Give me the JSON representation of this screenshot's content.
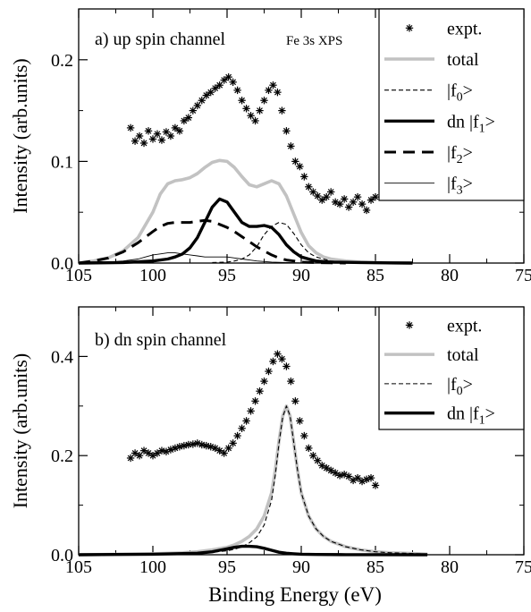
{
  "chart_data": [
    {
      "type": "line",
      "panel_label": "a) up spin channel",
      "annotation": "Fe 3s XPS",
      "ylabel": "Intensity (arb.units)",
      "xlabel": "",
      "xlim": [
        105,
        75
      ],
      "ylim": [
        0,
        0.25
      ],
      "x_ticks": [
        105,
        100,
        95,
        90,
        85,
        80,
        75
      ],
      "y_ticks": [
        0.0,
        0.1,
        0.2
      ],
      "x_tick_labels": [
        "105",
        "100",
        "95",
        "90",
        "85",
        "80",
        "75"
      ],
      "y_tick_labels": [
        "0.0",
        "0.1",
        "0.2"
      ],
      "legend_position": "top-right",
      "legend": [
        {
          "label": "expt.",
          "sub": "",
          "tail": "",
          "prefix": "",
          "style": "star"
        },
        {
          "label": "total",
          "sub": "",
          "tail": "",
          "prefix": "",
          "style": "gray-thick"
        },
        {
          "label": "|f",
          "sub": "0",
          "tail": ">",
          "prefix": "",
          "style": "thin-dash"
        },
        {
          "label": "dn |f",
          "sub": "1",
          "tail": ">",
          "prefix": "",
          "style": "thick-solid"
        },
        {
          "label": "|f",
          "sub": "2",
          "tail": ">",
          "prefix": "",
          "style": "thick-dash"
        },
        {
          "label": "|f",
          "sub": "3",
          "tail": ">",
          "prefix": "",
          "style": "thin-solid"
        }
      ],
      "series": [
        {
          "name": "expt.",
          "kind": "scatter",
          "style": "star",
          "x": [
            101.5,
            101.2,
            100.9,
            100.6,
            100.3,
            100.0,
            99.7,
            99.4,
            99.1,
            98.8,
            98.5,
            98.2,
            97.9,
            97.6,
            97.3,
            97.0,
            96.7,
            96.4,
            96.1,
            95.8,
            95.5,
            95.2,
            94.9,
            94.6,
            94.3,
            94.0,
            93.7,
            93.4,
            93.1,
            92.8,
            92.5,
            92.2,
            91.9,
            91.6,
            91.3,
            91.0,
            90.7,
            90.4,
            90.1,
            89.8,
            89.5,
            89.2,
            88.9,
            88.6,
            88.3,
            88.0,
            87.7,
            87.4,
            87.1,
            86.8,
            86.5,
            86.2,
            85.9,
            85.6,
            85.3,
            85.0
          ],
          "y": [
            0.133,
            0.12,
            0.125,
            0.118,
            0.13,
            0.122,
            0.127,
            0.121,
            0.129,
            0.125,
            0.133,
            0.13,
            0.14,
            0.143,
            0.15,
            0.155,
            0.16,
            0.165,
            0.168,
            0.172,
            0.175,
            0.18,
            0.183,
            0.178,
            0.17,
            0.16,
            0.152,
            0.145,
            0.14,
            0.15,
            0.16,
            0.17,
            0.175,
            0.168,
            0.15,
            0.13,
            0.115,
            0.1,
            0.095,
            0.085,
            0.075,
            0.07,
            0.066,
            0.062,
            0.065,
            0.07,
            0.06,
            0.058,
            0.063,
            0.055,
            0.06,
            0.065,
            0.058,
            0.052,
            0.062,
            0.065
          ]
        },
        {
          "name": "total",
          "kind": "line",
          "style": "gray-thick",
          "x": [
            105,
            104,
            103,
            102,
            101,
            100,
            99.5,
            99,
            98.5,
            98,
            97.5,
            97,
            96.5,
            96,
            95.5,
            95,
            94.5,
            94,
            93.5,
            93,
            92.5,
            92,
            91.5,
            91,
            90.5,
            90,
            89.5,
            89,
            88.5,
            88,
            87,
            86,
            85,
            84,
            83,
            82.5
          ],
          "y": [
            0.0,
            0.002,
            0.005,
            0.012,
            0.025,
            0.05,
            0.068,
            0.078,
            0.081,
            0.082,
            0.084,
            0.088,
            0.094,
            0.099,
            0.101,
            0.1,
            0.094,
            0.085,
            0.077,
            0.075,
            0.078,
            0.081,
            0.078,
            0.066,
            0.048,
            0.03,
            0.017,
            0.01,
            0.006,
            0.004,
            0.002,
            0.001,
            0.0005,
            0.0002,
            0.0,
            0.0
          ]
        },
        {
          "name": "|f0>",
          "kind": "line",
          "style": "thin-dash",
          "x": [
            96,
            95,
            94.5,
            94,
            93.5,
            93,
            92.5,
            92,
            91.5,
            91,
            90.5,
            90,
            89.5,
            89,
            88.5,
            88,
            87,
            86,
            85
          ],
          "y": [
            0.0005,
            0.001,
            0.002,
            0.004,
            0.008,
            0.016,
            0.028,
            0.036,
            0.04,
            0.038,
            0.029,
            0.018,
            0.01,
            0.006,
            0.004,
            0.002,
            0.001,
            0.0005,
            0.0
          ]
        },
        {
          "name": "dn |f1>",
          "kind": "line",
          "style": "thick-solid",
          "x": [
            105,
            102,
            100,
            99,
            98.5,
            98,
            97.5,
            97,
            96.5,
            96,
            95.5,
            95,
            94.5,
            94,
            93.5,
            93,
            92.5,
            92,
            91.5,
            91,
            90.5,
            90,
            89.5,
            89,
            88,
            86,
            84,
            82.5
          ],
          "y": [
            0.0,
            0.0005,
            0.002,
            0.004,
            0.006,
            0.009,
            0.015,
            0.025,
            0.04,
            0.055,
            0.063,
            0.06,
            0.05,
            0.04,
            0.036,
            0.036,
            0.037,
            0.035,
            0.028,
            0.018,
            0.011,
            0.006,
            0.004,
            0.002,
            0.001,
            0.0005,
            0.0002,
            0.0
          ]
        },
        {
          "name": "|f2>",
          "kind": "line",
          "style": "thick-dash",
          "x": [
            105,
            104,
            103,
            102,
            101,
            100,
            99.5,
            99,
            98.5,
            98,
            97.5,
            97,
            96.5,
            96,
            95.5,
            95,
            94.5,
            94,
            93.5,
            93,
            92.5,
            92,
            91.5,
            91,
            90.5,
            90,
            89.5,
            89,
            88,
            87
          ],
          "y": [
            0.0,
            0.002,
            0.005,
            0.011,
            0.02,
            0.031,
            0.036,
            0.039,
            0.04,
            0.04,
            0.04,
            0.041,
            0.042,
            0.041,
            0.038,
            0.035,
            0.031,
            0.026,
            0.021,
            0.016,
            0.012,
            0.008,
            0.005,
            0.003,
            0.002,
            0.001,
            0.0007,
            0.0004,
            0.0002,
            0.0
          ]
        },
        {
          "name": "|f3>",
          "kind": "line",
          "style": "thin-solid",
          "x": [
            105,
            103,
            102,
            101,
            100.5,
            100,
            99.5,
            99,
            98.5,
            98,
            97.5,
            97,
            96.5,
            96,
            95.5,
            95,
            94.5,
            94,
            93.5,
            93,
            92,
            91,
            90,
            88,
            86
          ],
          "y": [
            0.0,
            0.001,
            0.002,
            0.004,
            0.006,
            0.008,
            0.009,
            0.01,
            0.01,
            0.009,
            0.008,
            0.007,
            0.006,
            0.006,
            0.006,
            0.006,
            0.005,
            0.004,
            0.003,
            0.002,
            0.001,
            0.0005,
            0.0002,
            0.0001,
            0.0
          ]
        }
      ]
    },
    {
      "type": "line",
      "panel_label": "b) dn spin channel",
      "annotation": "",
      "ylabel": "Intensity (arb.units)",
      "xlabel": "Binding Energy (eV)",
      "xlim": [
        105,
        75
      ],
      "ylim": [
        0,
        0.5
      ],
      "x_ticks": [
        105,
        100,
        95,
        90,
        85,
        80,
        75
      ],
      "y_ticks": [
        0.0,
        0.2,
        0.4
      ],
      "x_tick_labels": [
        "105",
        "100",
        "95",
        "90",
        "85",
        "80",
        "75"
      ],
      "y_tick_labels": [
        "0.0",
        "0.2",
        "0.4"
      ],
      "legend_position": "top-right",
      "legend": [
        {
          "label": "expt.",
          "sub": "",
          "tail": "",
          "prefix": "",
          "style": "star"
        },
        {
          "label": "total",
          "sub": "",
          "tail": "",
          "prefix": "",
          "style": "gray-thick"
        },
        {
          "label": "|f",
          "sub": "0",
          "tail": ">",
          "prefix": "",
          "style": "thin-dash"
        },
        {
          "label": "dn |f",
          "sub": "1",
          "tail": ">",
          "prefix": "",
          "style": "thick-solid"
        }
      ],
      "series": [
        {
          "name": "expt.",
          "kind": "scatter",
          "style": "star",
          "x": [
            101.5,
            101.2,
            100.9,
            100.6,
            100.3,
            100.0,
            99.7,
            99.4,
            99.1,
            98.8,
            98.5,
            98.2,
            97.9,
            97.6,
            97.3,
            97.0,
            96.7,
            96.4,
            96.1,
            95.8,
            95.5,
            95.2,
            94.9,
            94.6,
            94.3,
            94.0,
            93.7,
            93.4,
            93.1,
            92.8,
            92.5,
            92.2,
            91.9,
            91.6,
            91.3,
            91.0,
            90.7,
            90.4,
            90.1,
            89.8,
            89.5,
            89.2,
            88.9,
            88.6,
            88.3,
            88.0,
            87.7,
            87.4,
            87.1,
            86.8,
            86.5,
            86.2,
            85.9,
            85.6,
            85.3,
            85.0
          ],
          "y": [
            0.195,
            0.205,
            0.2,
            0.21,
            0.205,
            0.2,
            0.205,
            0.21,
            0.208,
            0.212,
            0.215,
            0.218,
            0.22,
            0.222,
            0.223,
            0.225,
            0.222,
            0.22,
            0.218,
            0.215,
            0.21,
            0.205,
            0.215,
            0.225,
            0.24,
            0.255,
            0.27,
            0.29,
            0.31,
            0.33,
            0.35,
            0.37,
            0.39,
            0.405,
            0.395,
            0.38,
            0.35,
            0.31,
            0.27,
            0.24,
            0.215,
            0.2,
            0.19,
            0.18,
            0.175,
            0.17,
            0.165,
            0.16,
            0.162,
            0.158,
            0.15,
            0.155,
            0.148,
            0.152,
            0.155,
            0.14
          ]
        },
        {
          "name": "total",
          "kind": "line",
          "style": "gray-thick",
          "x": [
            105,
            102,
            100,
            98,
            97,
            96,
            95,
            94.5,
            94,
            93.5,
            93,
            92.5,
            92,
            91.75,
            91.5,
            91.25,
            91,
            90.75,
            90.5,
            90.25,
            90,
            89.5,
            89,
            88.5,
            88,
            87,
            86,
            85,
            84,
            83,
            82,
            81.5
          ],
          "y": [
            0.0,
            0.001,
            0.002,
            0.004,
            0.006,
            0.01,
            0.015,
            0.02,
            0.027,
            0.037,
            0.052,
            0.078,
            0.125,
            0.17,
            0.23,
            0.28,
            0.3,
            0.28,
            0.225,
            0.17,
            0.125,
            0.078,
            0.052,
            0.037,
            0.027,
            0.016,
            0.01,
            0.006,
            0.004,
            0.003,
            0.002,
            0.001
          ]
        },
        {
          "name": "|f0>",
          "kind": "line",
          "style": "thin-dash",
          "x": [
            105,
            102,
            100,
            98,
            97,
            96,
            95,
            94.5,
            94,
            93.5,
            93,
            92.5,
            92,
            91.75,
            91.5,
            91.25,
            91,
            90.75,
            90.5,
            90.25,
            90,
            89.5,
            89,
            88.5,
            88,
            87,
            86,
            85,
            84,
            83,
            82,
            81.5
          ],
          "y": [
            0.0,
            0.001,
            0.001,
            0.002,
            0.003,
            0.005,
            0.008,
            0.011,
            0.016,
            0.024,
            0.036,
            0.06,
            0.11,
            0.16,
            0.225,
            0.278,
            0.3,
            0.28,
            0.225,
            0.17,
            0.125,
            0.078,
            0.052,
            0.037,
            0.027,
            0.016,
            0.01,
            0.006,
            0.004,
            0.003,
            0.002,
            0.001
          ]
        },
        {
          "name": "dn |f1>",
          "kind": "line",
          "style": "thick-solid",
          "x": [
            105,
            100,
            97,
            96,
            95.5,
            95,
            94.5,
            94,
            93.5,
            93,
            92.5,
            92,
            91.5,
            91,
            90.5,
            90,
            89,
            87,
            85,
            82,
            81.5
          ],
          "y": [
            0.0,
            0.001,
            0.003,
            0.006,
            0.009,
            0.012,
            0.015,
            0.017,
            0.017,
            0.016,
            0.013,
            0.009,
            0.005,
            0.003,
            0.002,
            0.001,
            0.0005,
            0.0002,
            0.0001,
            0.0,
            0.0
          ]
        }
      ]
    }
  ]
}
